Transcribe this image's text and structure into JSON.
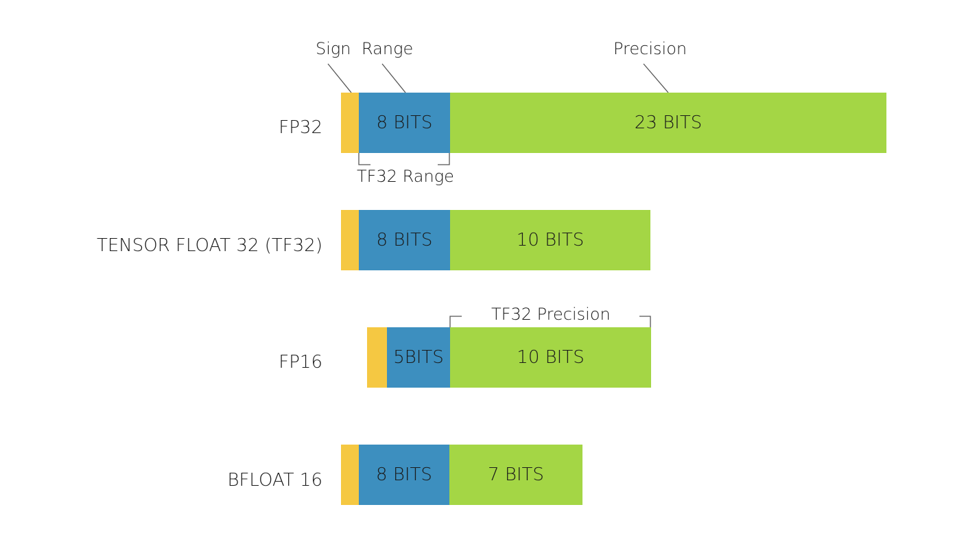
{
  "annotations": {
    "sign": "Sign",
    "range": "Range",
    "precision": "Precision",
    "tf32_range": "TF32 Range",
    "tf32_precision": "TF32 Precision"
  },
  "colors": {
    "sign": "#f5c842",
    "range": "#3d8fbf",
    "precision": "#a4d645",
    "line": "#555555"
  },
  "formats": [
    {
      "label": "FP32",
      "range_text": "8 BITS",
      "precision_text": "23 BITS"
    },
    {
      "label": "TENSOR FLOAT 32 (TF32)",
      "range_text": "8 BITS",
      "precision_text": "10 BITS"
    },
    {
      "label": "FP16",
      "range_text": "5BITS",
      "precision_text": "10 BITS"
    },
    {
      "label": "BFLOAT 16",
      "range_text": "8 BITS",
      "precision_text": "7 BITS"
    }
  ]
}
